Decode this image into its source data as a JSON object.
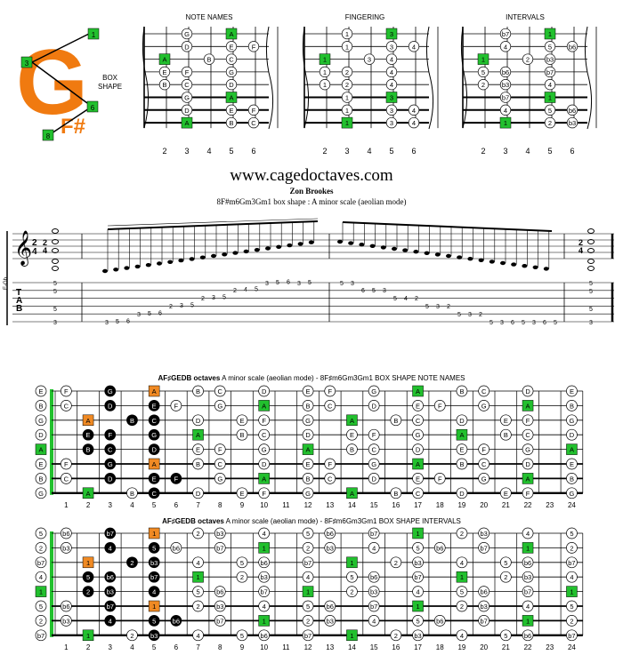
{
  "logo": {
    "letter": "G",
    "sharp_label": "F#",
    "markers": [
      "1",
      "3",
      "6",
      "8"
    ],
    "box_shape_label": [
      "BOX",
      "SHAPE"
    ]
  },
  "diagram_titles": [
    "NOTE NAMES",
    "FINGERING",
    "INTERVALS"
  ],
  "fret_numbers_small": [
    "2",
    "3",
    "4",
    "5",
    "6"
  ],
  "small_diagrams": {
    "note_names": [
      [
        null,
        "G",
        null,
        "A",
        null
      ],
      [
        null,
        "D",
        null,
        "E",
        "F"
      ],
      [
        "A",
        null,
        "B",
        "C",
        null
      ],
      [
        "E",
        "F",
        null,
        "G",
        null
      ],
      [
        "B",
        "C",
        null,
        "D",
        null
      ],
      [
        null,
        "G",
        null,
        "A",
        null
      ],
      [
        null,
        "D",
        null,
        "E",
        "F"
      ],
      [
        null,
        "A",
        null,
        "B",
        "C"
      ]
    ],
    "fingering": [
      [
        null,
        "1",
        null,
        "3",
        null
      ],
      [
        null,
        "1",
        null,
        "3",
        "4"
      ],
      [
        "1",
        null,
        "3",
        "4",
        null
      ],
      [
        "1",
        "2",
        null,
        "4",
        null
      ],
      [
        "1",
        "2",
        null,
        "4",
        null
      ],
      [
        null,
        "1",
        null,
        "3",
        null
      ],
      [
        null,
        "1",
        null,
        "3",
        "4"
      ],
      [
        null,
        "1",
        null,
        "3",
        "4"
      ]
    ],
    "intervals": [
      [
        null,
        "b7",
        null,
        "1",
        null
      ],
      [
        null,
        "4",
        null,
        "5",
        "b6"
      ],
      [
        "1",
        null,
        "2",
        "b3",
        null
      ],
      [
        "5",
        "b6",
        null,
        "b7",
        null
      ],
      [
        "2",
        "b3",
        null,
        "4",
        null
      ],
      [
        null,
        "b7",
        null,
        "1",
        null
      ],
      [
        null,
        "4",
        null,
        "5",
        "b6"
      ],
      [
        null,
        "1",
        null,
        "2",
        "b3"
      ]
    ],
    "root_markers": {
      "note_names": "A",
      "fingering": "rootcols",
      "intervals": "1"
    }
  },
  "site": "www.cagedoctaves.com",
  "author": "Zon Brookes",
  "subtitle": "8F#m6Gm3Gm1 box shape : A minor scale (aeolian mode)",
  "staff": {
    "clef": "𝄞",
    "time": "2/4",
    "tuning_label": "E-Gb",
    "tab_letters": [
      "T",
      "A",
      "B"
    ],
    "tab_line_left": [
      "5",
      "5",
      "5",
      "3"
    ],
    "tab_line_right": [
      "5",
      "5",
      "5",
      "3"
    ],
    "tab_asc": [
      [
        "3",
        "5",
        "6"
      ],
      [
        "3",
        "5",
        "6"
      ],
      [
        "2",
        "3",
        "5"
      ],
      [
        "2",
        "3",
        "5"
      ],
      [
        "2",
        "4",
        "5"
      ],
      [
        "3",
        "5",
        "6"
      ],
      [
        "3",
        "5"
      ]
    ],
    "tab_desc": [
      [
        "5",
        "3"
      ],
      [
        "6",
        "5",
        "3"
      ],
      [
        "5",
        "4",
        "2"
      ],
      [
        "5",
        "3",
        "2"
      ],
      [
        "5",
        "3",
        "2"
      ],
      [
        "5",
        "3"
      ],
      [
        "6",
        "5",
        "3"
      ],
      [
        "6",
        "5",
        "3"
      ]
    ]
  },
  "board1": {
    "title_bold": "AF♯GEDB octaves",
    "title_rest": " A minor scale (aeolian mode) - 8F♯m6Gm3Gm1 BOX SHAPE  NOTE NAMES",
    "open": [
      "E",
      "B",
      "G",
      "D",
      "A",
      "E",
      "B",
      "G"
    ]
  },
  "board2": {
    "title_bold": "AF♯GEDB octaves",
    "title_rest": " A minor scale (aeolian mode) - 8F♯m6Gm3Gm1 BOX SHAPE  INTERVALS",
    "open": [
      "5",
      "2",
      "b7",
      "4",
      "1",
      "5",
      "2",
      "b7"
    ]
  },
  "fret_numbers": [
    "1",
    "2",
    "3",
    "4",
    "5",
    "6",
    "7",
    "8",
    "9",
    "10",
    "11",
    "12",
    "13",
    "14",
    "15",
    "16",
    "17",
    "18",
    "19",
    "20",
    "21",
    "22",
    "23",
    "24"
  ],
  "colors": {
    "root_green": "#22c02e",
    "orange": "#f08a24",
    "logo_orange": "#f07a10",
    "black": "#000000"
  }
}
